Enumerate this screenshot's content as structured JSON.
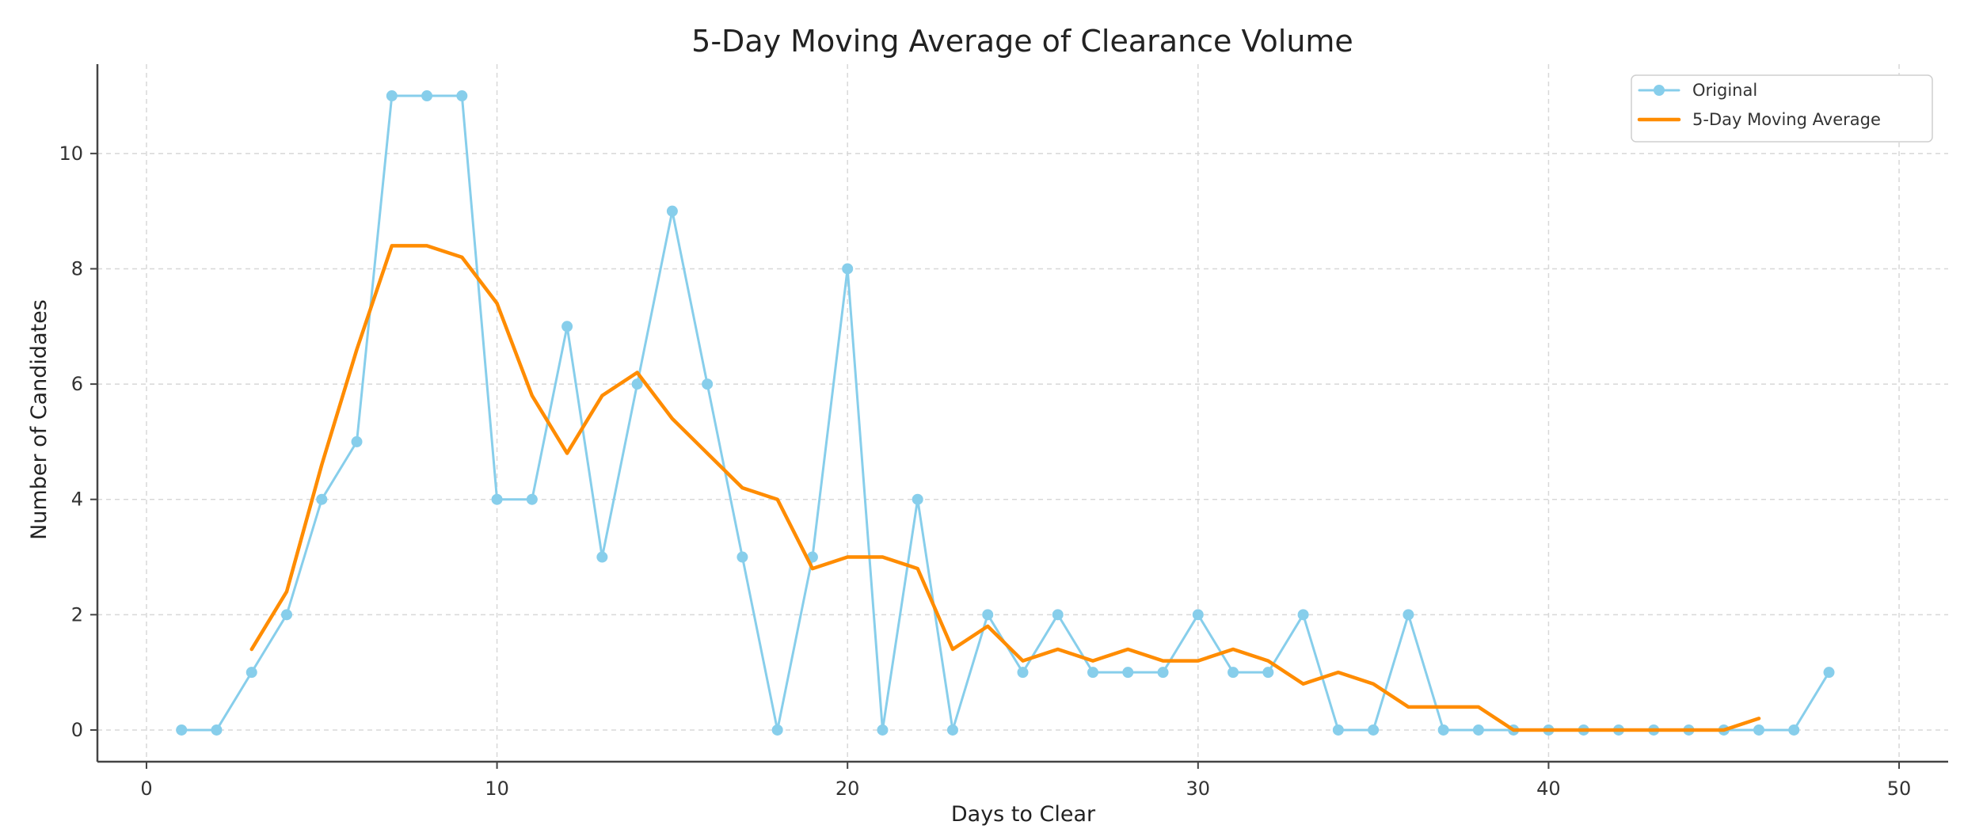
{
  "chart_data": {
    "type": "line",
    "title": "5-Day Moving Average of Clearance Volume",
    "xlabel": "Days to Clear",
    "ylabel": "Number of Candidates",
    "xlim": [
      -1.4,
      51.4
    ],
    "ylim": [
      -0.55,
      11.55
    ],
    "xticks": [
      0,
      10,
      20,
      30,
      40,
      50
    ],
    "yticks": [
      0,
      2,
      4,
      6,
      8,
      10
    ],
    "grid": true,
    "legend_position": "top-right",
    "series": [
      {
        "name": "Original",
        "color": "#87ceeb",
        "marker": "circle",
        "x": [
          1,
          2,
          3,
          4,
          5,
          6,
          7,
          8,
          9,
          10,
          11,
          12,
          13,
          14,
          15,
          16,
          17,
          18,
          19,
          20,
          21,
          22,
          23,
          24,
          25,
          26,
          27,
          28,
          29,
          30,
          31,
          32,
          33,
          34,
          35,
          36,
          37,
          38,
          39,
          40,
          41,
          42,
          43,
          44,
          45,
          46,
          47,
          48
        ],
        "values": [
          0,
          0,
          1,
          2,
          4,
          5,
          11,
          11,
          11,
          4,
          4,
          7,
          3,
          6,
          9,
          6,
          3,
          0,
          3,
          8,
          0,
          4,
          0,
          2,
          1,
          2,
          1,
          1,
          1,
          2,
          1,
          1,
          2,
          0,
          0,
          2,
          0,
          0,
          0,
          0,
          0,
          0,
          0,
          0,
          0,
          0,
          0,
          1
        ]
      },
      {
        "name": "5-Day Moving Average",
        "color": "#ff8c00",
        "marker": "none",
        "x": [
          3,
          4,
          5,
          6,
          7,
          8,
          9,
          10,
          11,
          12,
          13,
          14,
          15,
          16,
          17,
          18,
          19,
          20,
          21,
          22,
          23,
          24,
          25,
          26,
          27,
          28,
          29,
          30,
          31,
          32,
          33,
          34,
          35,
          36,
          37,
          38,
          39,
          40,
          41,
          42,
          43,
          44,
          45,
          46
        ],
        "values": [
          1.4,
          2.4,
          4.6,
          6.6,
          8.4,
          8.4,
          8.2,
          7.4,
          5.8,
          4.8,
          5.8,
          6.2,
          5.4,
          4.8,
          4.2,
          4.0,
          2.8,
          3.0,
          3.0,
          2.8,
          1.4,
          1.8,
          1.2,
          1.4,
          1.2,
          1.4,
          1.2,
          1.2,
          1.4,
          1.2,
          0.8,
          1.0,
          0.8,
          0.4,
          0.4,
          0.4,
          0.0,
          0.0,
          0.0,
          0.0,
          0.0,
          0.0,
          0.0,
          0.2
        ]
      }
    ]
  }
}
